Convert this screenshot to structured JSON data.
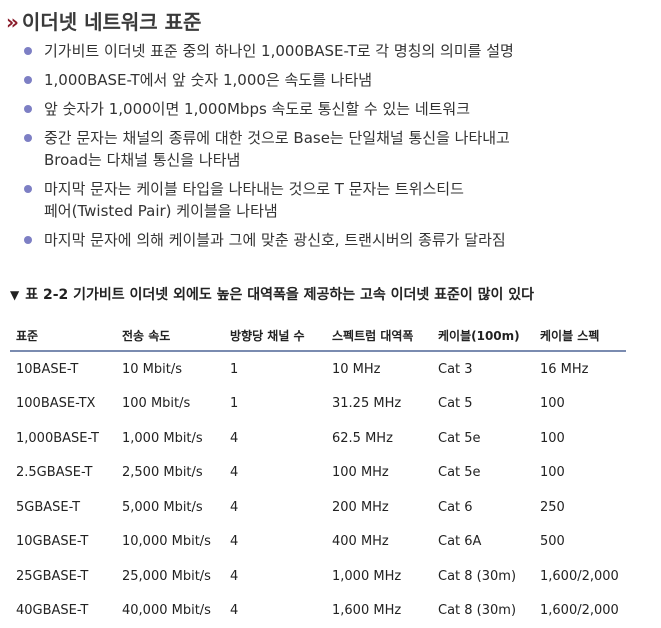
{
  "section": {
    "marker": "»",
    "title": "이더넷 네트워크 표준"
  },
  "bullets": [
    "기가비트 이더넷 표준 중의 하나인 1,000BASE-T로 각 명칭의 의미를 설명",
    "1,000BASE-T에서 앞 숫자 1,000은 속도를 나타냄",
    "앞 숫자가 1,000이면 1,000Mbps 속도로 통신할 수 있는 네트워크",
    "중간 문자는 채널의 종류에 대한 것으로 Base는 단일채널 통신을 나타내고\nBroad는 다채널 통신을 나타냄",
    "마지막 문자는 케이블 타입을 나타내는 것으로 T 문자는 트위스티드\n페어(Twisted Pair) 케이블을 나타냄",
    "마지막 문자에 의해 케이블과 그에 맞춘 광신호, 트랜시버의 종류가 달라짐"
  ],
  "table": {
    "caption_marker": "▼",
    "caption": "표 2-2 기가비트 이더넷 외에도 높은 대역폭을 제공하는 고속 이더넷 표준이 많이 있다",
    "headers": [
      "표준",
      "전송 속도",
      "방향당 채널 수",
      "스펙트럼 대역폭",
      "케이블(100m)",
      "케이블 스펙"
    ],
    "rows": [
      [
        "10BASE-T",
        "10 Mbit/s",
        "1",
        "10 MHz",
        "Cat 3",
        "16 MHz"
      ],
      [
        "100BASE-TX",
        "100 Mbit/s",
        "1",
        "31.25 MHz",
        "Cat 5",
        "100"
      ],
      [
        "1,000BASE-T",
        "1,000 Mbit/s",
        "4",
        "62.5 MHz",
        "Cat 5e",
        "100"
      ],
      [
        "2.5GBASE-T",
        "2,500 Mbit/s",
        "4",
        "100 MHz",
        "Cat 5e",
        "100"
      ],
      [
        "5GBASE-T",
        "5,000 Mbit/s",
        "4",
        "200 MHz",
        "Cat 6",
        "250"
      ],
      [
        "10GBASE-T",
        "10,000 Mbit/s",
        "4",
        "400 MHz",
        "Cat 6A",
        "500"
      ],
      [
        "25GBASE-T",
        "25,000 Mbit/s",
        "4",
        "1,000 MHz",
        "Cat 8 (30m)",
        "1,600/2,000"
      ],
      [
        "40GBASE-T",
        "40,000 Mbit/s",
        "4",
        "1,600 MHz",
        "Cat 8 (30m)",
        "1,600/2,000"
      ]
    ]
  },
  "colors": {
    "marker": "#8a1c2b",
    "bullet_dot": "#7d7fc4",
    "header_rule": "#7a8bb0"
  }
}
